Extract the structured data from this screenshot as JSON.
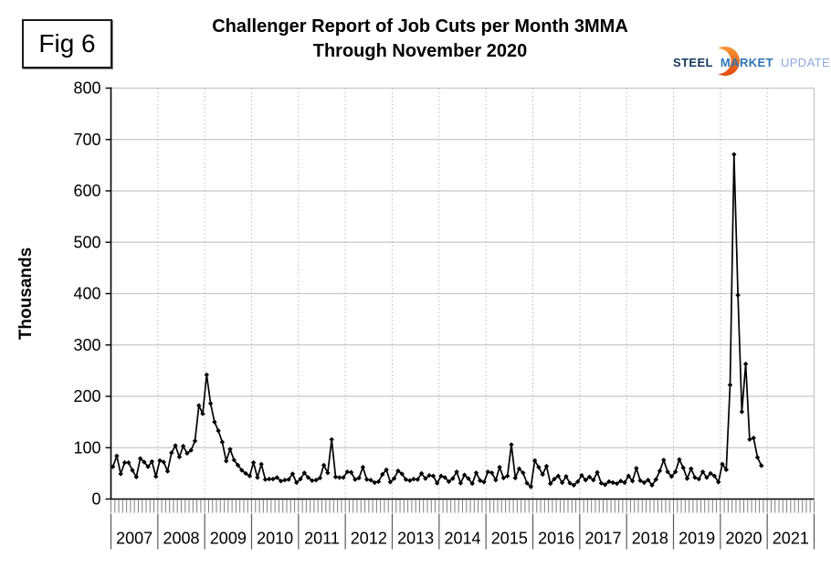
{
  "fig_label": "Fig 6",
  "title": {
    "line1": "Challenger Report of Job Cuts per Month 3MMA",
    "line2": "Through November 2020"
  },
  "logo": {
    "steel": "STEEL",
    "market": "MARKET",
    "update": "UPDATE",
    "colors": {
      "steel": "#17365d",
      "market": "#2e75b6",
      "update": "#8eaadb",
      "crescent_top": "#f9a03a",
      "crescent_bottom": "#e03e0b"
    }
  },
  "chart_data": {
    "type": "line",
    "title": "Challenger Report of Job Cuts per Month 3MMA Through November 2020",
    "xlabel": "",
    "ylabel": "Thousands",
    "ylim": [
      0,
      800
    ],
    "y_ticks": [
      0,
      100,
      200,
      300,
      400,
      500,
      600,
      700,
      800
    ],
    "x_years": [
      "2007",
      "2008",
      "2009",
      "2010",
      "2011",
      "2012",
      "2013",
      "2014",
      "2015",
      "2016",
      "2017",
      "2018",
      "2019",
      "2020",
      "2021"
    ],
    "data_start_month": "2007-01",
    "data_end_month": "2020-11",
    "grid": true,
    "legend": "none",
    "marker": "diamond",
    "colors": {
      "line": "#000000",
      "h_grid": "#c8c8c8",
      "v_grid_dotted": "#b8b8b8",
      "axis": "#000000",
      "minor_tick": "#808080",
      "year_divider": "#595959",
      "label": "#000000"
    },
    "monthly_values_thousands": [
      63,
      84,
      49,
      71,
      71,
      56,
      43,
      79,
      72,
      63,
      73,
      44,
      75,
      72,
      54,
      90,
      104,
      82,
      103,
      89,
      95,
      113,
      182,
      166,
      242,
      186,
      150,
      133,
      111,
      74,
      97,
      76,
      66,
      56,
      50,
      45,
      71,
      42,
      68,
      38,
      39,
      39,
      42,
      35,
      37,
      38,
      49,
      32,
      39,
      51,
      42,
      36,
      37,
      41,
      66,
      51,
      116,
      43,
      42,
      42,
      53,
      52,
      38,
      41,
      62,
      38,
      37,
      32,
      34,
      48,
      57,
      33,
      40,
      55,
      49,
      38,
      36,
      39,
      38,
      50,
      40,
      46,
      45,
      31,
      45,
      42,
      34,
      40,
      53,
      31,
      47,
      40,
      30,
      51,
      36,
      33,
      53,
      51,
      37,
      62,
      41,
      45,
      106,
      41,
      59,
      51,
      31,
      24,
      75,
      62,
      48,
      64,
      30,
      39,
      45,
      32,
      44,
      31,
      27,
      34,
      46,
      37,
      43,
      37,
      52,
      31,
      28,
      34,
      32,
      30,
      35,
      32,
      45,
      35,
      60,
      36,
      32,
      37,
      27,
      38,
      55,
      76,
      53,
      44,
      53,
      77,
      61,
      40,
      59,
      42,
      39,
      53,
      42,
      50,
      45,
      33,
      68,
      57,
      222,
      671,
      397,
      170,
      263,
      116,
      119,
      81,
      65
    ]
  }
}
